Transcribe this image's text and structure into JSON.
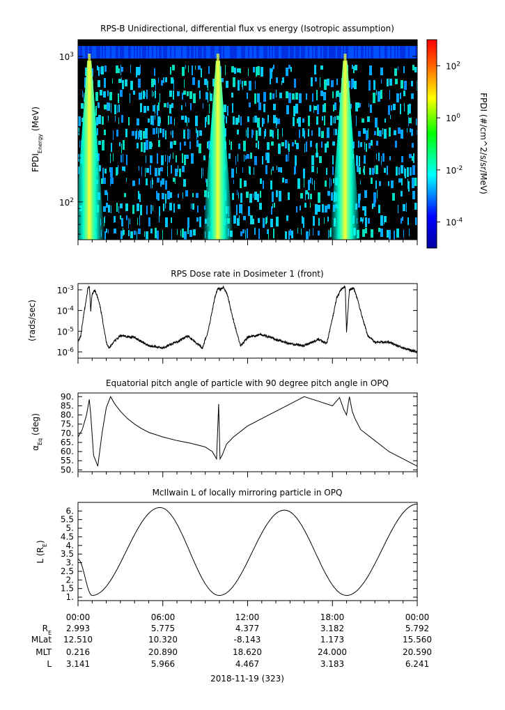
{
  "chart_data": [
    {
      "type": "heatmap",
      "title": "RPS-B  Unidirectional, differential flux vs energy (Isotropic assumption)",
      "ylabel_main": "FPDI",
      "ylabel_sub": "Energy",
      "ylabel_unit": " (MeV)",
      "y_scale": "log",
      "ylim": [
        55,
        1300
      ],
      "y_ticks": [
        {
          "value": 100,
          "base": "10",
          "exp": "2"
        },
        {
          "value": 1000,
          "base": "10",
          "exp": "3"
        }
      ],
      "colorbar": {
        "label": "FPDI (#/cm^2/s/sr/MeV)",
        "scale": "log",
        "range_log10": [
          -5,
          3
        ],
        "ticks": [
          {
            "value": -4,
            "base": "10",
            "exp": "-4"
          },
          {
            "value": -2,
            "base": "10",
            "exp": "-2"
          },
          {
            "value": 0,
            "base": "10",
            "exp": "0"
          },
          {
            "value": 2,
            "base": "10",
            "exp": "2"
          }
        ]
      },
      "features": [
        {
          "peak_hour": 0.8,
          "peak_log10_flux": 0.3
        },
        {
          "peak_hour": 9.9,
          "peak_log10_flux": 0.3
        },
        {
          "peak_hour": 18.9,
          "peak_log10_flux": 0.3
        }
      ]
    },
    {
      "type": "line",
      "title": "RPS  Dose rate in Dosimeter 1 (front)",
      "ylabel": "(rads/sec)",
      "y_scale": "log",
      "ylim": [
        5e-07,
        0.002
      ],
      "y_ticks": [
        {
          "value": 1e-06,
          "base": "10",
          "exp": "-6"
        },
        {
          "value": 1e-05,
          "base": "10",
          "exp": "-5"
        },
        {
          "value": 0.0001,
          "base": "10",
          "exp": "-4"
        },
        {
          "value": 0.001,
          "base": "10",
          "exp": "-3"
        }
      ],
      "x": [
        0,
        0.2,
        0.4,
        0.6,
        0.7,
        0.8,
        0.9,
        1.0,
        1.2,
        1.4,
        1.6,
        1.8,
        2.0,
        2.2,
        2.5,
        3.0,
        4.0,
        5.0,
        6.0,
        7.0,
        7.8,
        8.3,
        8.8,
        9.2,
        9.5,
        9.7,
        9.9,
        10.1,
        10.3,
        10.6,
        10.9,
        11.2,
        11.5,
        12.0,
        13.0,
        14.0,
        15.0,
        16.0,
        17.0,
        17.6,
        18.0,
        18.3,
        18.6,
        18.9,
        19.0,
        19.2,
        19.5,
        19.8,
        20.1,
        20.5,
        21.0,
        22.0,
        23.0,
        24.0
      ],
      "values": [
        3e-06,
        6e-06,
        6e-05,
        0.0004,
        0.0012,
        0.0015,
        0.0001,
        0.0006,
        0.001,
        0.0004,
        0.00012,
        2e-05,
        3e-06,
        1.5e-06,
        3e-06,
        6e-06,
        5e-06,
        2e-06,
        1.6e-06,
        3e-06,
        6e-06,
        3e-06,
        1.5e-06,
        1e-05,
        0.0001,
        0.0005,
        0.0012,
        0.001,
        0.0014,
        0.0005,
        6e-05,
        1e-05,
        2e-06,
        5e-06,
        7e-06,
        4e-06,
        2.5e-06,
        2e-06,
        4e-06,
        2.5e-06,
        4e-05,
        0.0004,
        0.001,
        0.0015,
        1e-05,
        0.001,
        0.0012,
        0.0003,
        5e-05,
        6e-06,
        3e-06,
        3e-06,
        1.5e-06,
        1e-06
      ]
    },
    {
      "type": "line",
      "title": "Equatorial pitch angle of particle with 90 degree pitch angle in OPQ",
      "ylabel_main": "α",
      "ylabel_sub": "Eq",
      "ylabel_unit": " (deg)",
      "ylim": [
        49,
        92
      ],
      "y_ticks": [
        50,
        55,
        60,
        65,
        70,
        75,
        80,
        85,
        90
      ],
      "x": [
        0,
        0.3,
        0.6,
        0.8,
        0.9,
        1.1,
        1.4,
        1.7,
        2.0,
        2.3,
        2.6,
        3.0,
        3.5,
        4.0,
        4.5,
        5.0,
        6.0,
        7.0,
        8.0,
        9.0,
        9.5,
        9.8,
        9.95,
        10.05,
        10.2,
        10.5,
        11.0,
        12.0,
        13.0,
        14.0,
        15.0,
        16.0,
        17.0,
        18.0,
        18.5,
        18.8,
        19.0,
        19.2,
        19.4,
        19.6,
        20.0,
        21.0,
        22.0,
        23.0,
        24.0
      ],
      "values": [
        68,
        72,
        80,
        88.5,
        80,
        58,
        52,
        70,
        84,
        90,
        86,
        82,
        78,
        75,
        72.5,
        70.5,
        68,
        66,
        64.5,
        62.5,
        60,
        56,
        86,
        56,
        58,
        64,
        68,
        74,
        78,
        82,
        86,
        90,
        87.5,
        85,
        89.5,
        83,
        80,
        90,
        82,
        78,
        72,
        66,
        60,
        56,
        52
      ]
    },
    {
      "type": "line",
      "title": "McIlwain L of locally mirroring particle in OPQ",
      "ylabel_main": "L (R",
      "ylabel_sub": "E",
      "ylabel_unit": ")",
      "ylim": [
        0.8,
        6.5
      ],
      "y_ticks": [
        1,
        1.5,
        2,
        2.5,
        3,
        3.5,
        4,
        4.5,
        5,
        5.5,
        6
      ],
      "segments": [
        {
          "x_start": 0.0,
          "x_min": 1.0,
          "x_max": 5.8,
          "v_start": 3.2,
          "v_min": 1.1,
          "v_max": 6.2
        },
        {
          "x_min": 10.0,
          "x_max": 14.6,
          "v_min": 1.1,
          "v_max": 6.05
        },
        {
          "x_min": 19.0,
          "x_end": 24.0,
          "v_min": 1.1,
          "v_end": 6.4
        }
      ]
    }
  ],
  "time_axis": {
    "labels": [
      "00:00",
      "06:00",
      "12:00",
      "18:00",
      "00:00"
    ],
    "xlim_hours": [
      0,
      24
    ],
    "date": "2018-11-19 (323)"
  },
  "ephemeris": {
    "rows": [
      {
        "main": "R",
        "sub": "E",
        "values": [
          "2.993",
          "5.775",
          "4.377",
          "3.182",
          "5.792"
        ]
      },
      {
        "main": "MLat",
        "sub": "",
        "values": [
          "12.510",
          "10.320",
          "-8.143",
          "1.173",
          "15.560"
        ]
      },
      {
        "main": "MLT",
        "sub": "",
        "values": [
          "0.216",
          "20.890",
          "18.620",
          "24.000",
          "20.590"
        ]
      },
      {
        "main": "L",
        "sub": "",
        "values": [
          "3.141",
          "5.966",
          "4.467",
          "3.183",
          "6.241"
        ]
      }
    ]
  }
}
